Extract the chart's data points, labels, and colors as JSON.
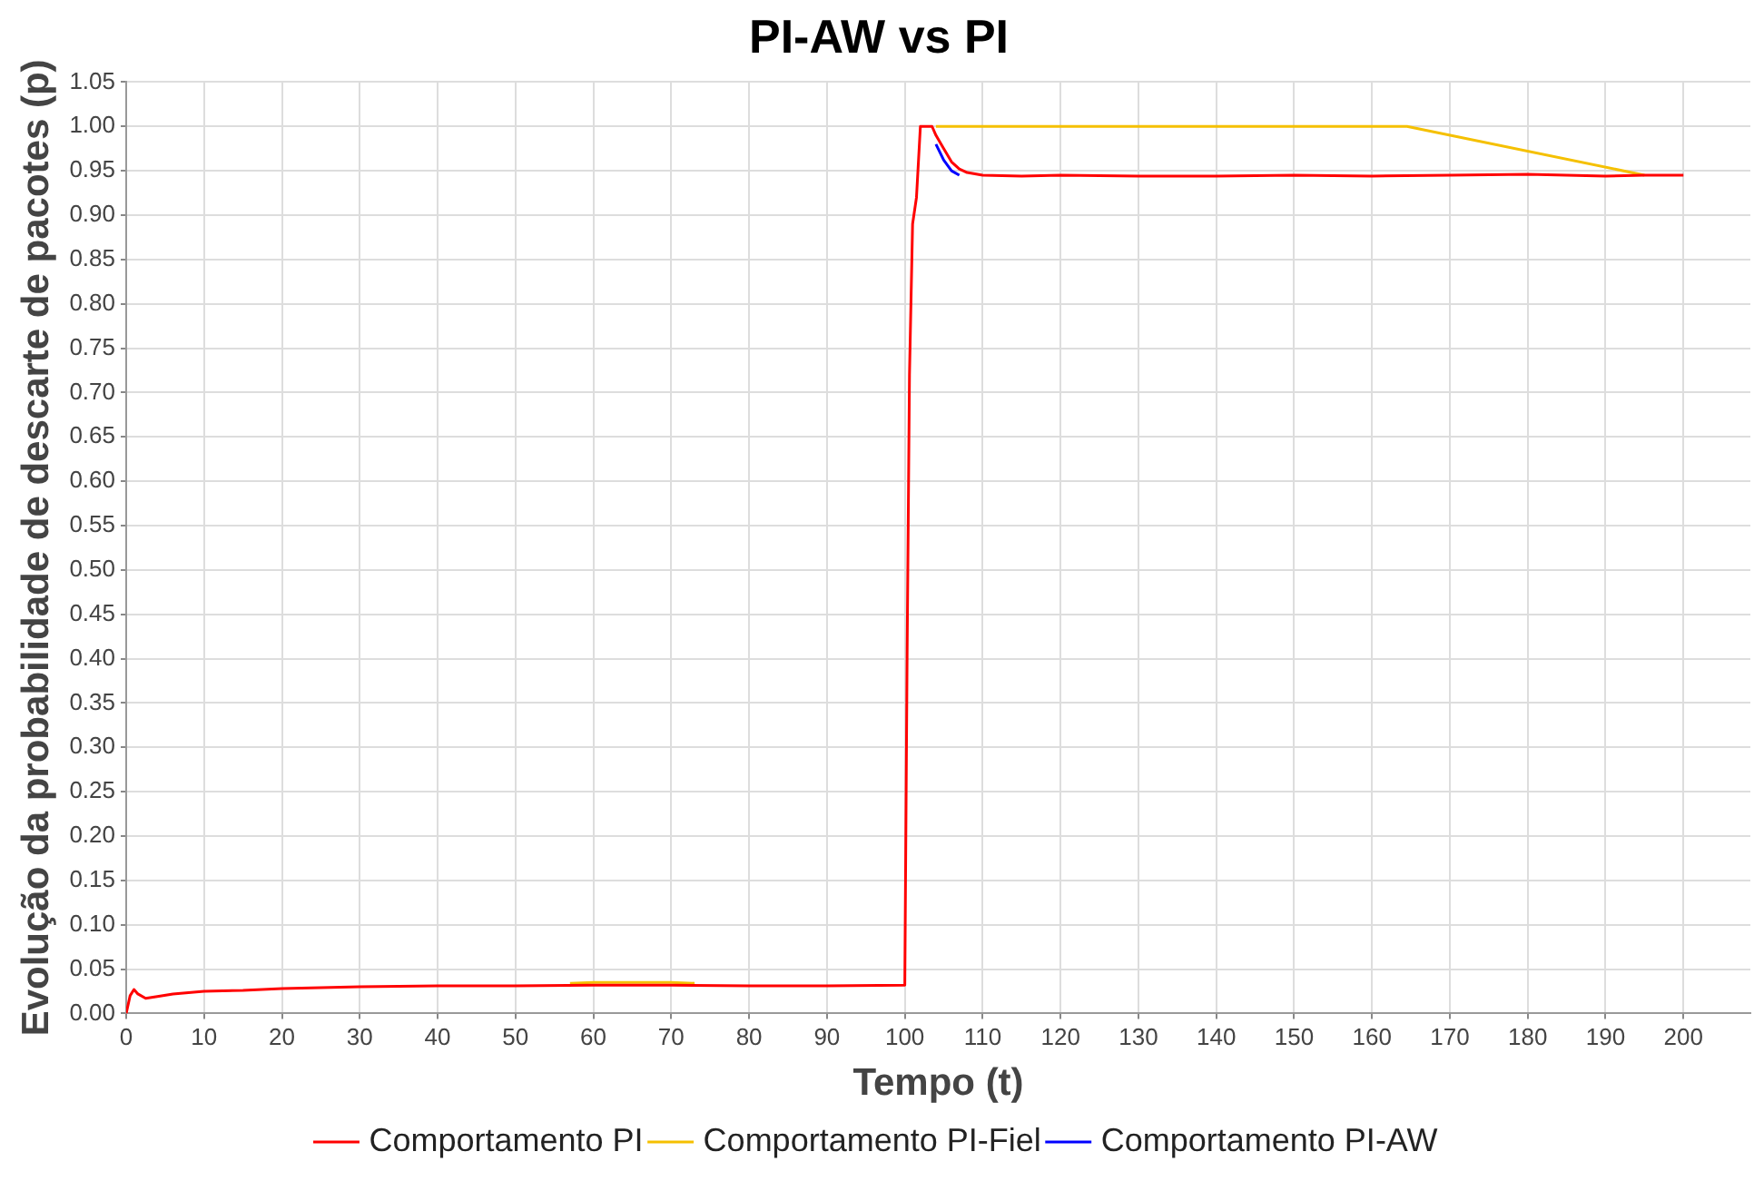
{
  "chart_data": {
    "type": "line",
    "title": "PI-AW vs PI",
    "xlabel": "Tempo (t)",
    "ylabel": "Evolução da probabilidade de descarte de pacotes (p)",
    "xlim": [
      0,
      208.6
    ],
    "xticks": [
      0,
      10,
      20,
      30,
      40,
      50,
      60,
      70,
      80,
      90,
      100,
      110,
      120,
      130,
      140,
      150,
      160,
      170,
      180,
      190,
      200
    ],
    "ylim": [
      0,
      1.05
    ],
    "yticks": [
      {
        "value": 0,
        "label": "0.00"
      },
      {
        "value": 0.05,
        "label": "0.05"
      },
      {
        "value": 0.1,
        "label": "0.10"
      },
      {
        "value": 0.15,
        "label": "0.15"
      },
      {
        "value": 0.2,
        "label": "0.20"
      },
      {
        "value": 0.25,
        "label": "0.25"
      },
      {
        "value": 0.3,
        "label": "0.30"
      },
      {
        "value": 0.35,
        "label": "0.35"
      },
      {
        "value": 0.4,
        "label": "0.40"
      },
      {
        "value": 0.45,
        "label": "0.45"
      },
      {
        "value": 0.5,
        "label": "0.50"
      },
      {
        "value": 0.55,
        "label": "0.55"
      },
      {
        "value": 0.6,
        "label": "0.60"
      },
      {
        "value": 0.65,
        "label": "0.65"
      },
      {
        "value": 0.7,
        "label": "0.70"
      },
      {
        "value": 0.75,
        "label": "0.75"
      },
      {
        "value": 0.8,
        "label": "0.80"
      },
      {
        "value": 0.85,
        "label": "0.85"
      },
      {
        "value": 0.9,
        "label": "0.90"
      },
      {
        "value": 0.95,
        "label": "0.95"
      },
      {
        "value": 1,
        "label": "1.00"
      },
      {
        "value": 1.05,
        "label": "1.05"
      }
    ],
    "grid": true,
    "legend": "bottom",
    "marker": "none",
    "line_style": "solid",
    "series": [
      {
        "name": "Comportamento PI",
        "color": "#ff0000",
        "x": [
          0,
          0.5,
          1,
          1.5,
          2.5,
          4,
          6,
          10,
          15,
          20,
          30,
          40,
          50,
          60,
          70,
          80,
          90,
          100,
          100.3,
          100.6,
          101,
          101.5,
          102,
          103.5,
          104,
          105,
          106,
          107,
          108,
          110,
          115,
          120,
          130,
          140,
          150,
          160,
          170,
          180,
          190,
          195,
          200
        ],
        "values": [
          0,
          0.02,
          0.027,
          0.022,
          0.017,
          0.019,
          0.022,
          0.025,
          0.026,
          0.028,
          0.03,
          0.031,
          0.031,
          0.032,
          0.032,
          0.031,
          0.031,
          0.032,
          0.41,
          0.72,
          0.89,
          0.92,
          1,
          1,
          0.99,
          0.975,
          0.96,
          0.952,
          0.948,
          0.945,
          0.944,
          0.945,
          0.944,
          0.944,
          0.945,
          0.944,
          0.945,
          0.946,
          0.944,
          0.945,
          0.945
        ]
      },
      {
        "name": "Comportamento PI-Fiel",
        "color": "#f5c000",
        "x": [
          57,
          60,
          65,
          70,
          73,
          90,
          104,
          164.5,
          195
        ],
        "values": [
          0.034,
          0.035,
          0.035,
          0.035,
          0.034,
          null,
          1,
          1,
          0.945
        ]
      },
      {
        "name": "Comportamento PI-AW",
        "color": "#0000ff",
        "x": [
          104,
          105,
          106,
          107
        ],
        "values": [
          0.98,
          0.962,
          0.95,
          0.945
        ]
      }
    ]
  }
}
